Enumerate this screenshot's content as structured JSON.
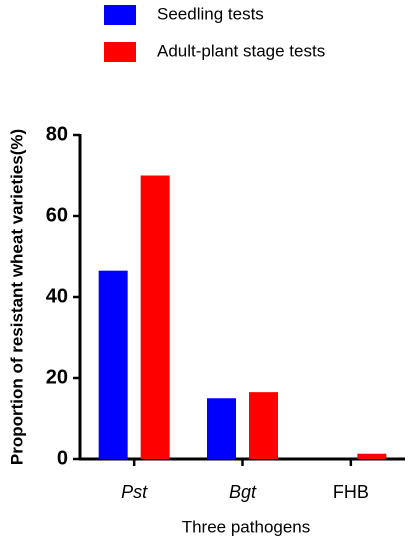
{
  "chart_data": {
    "type": "bar",
    "categories": [
      "Pst",
      "Bgt",
      "FHB"
    ],
    "category_font_style": [
      "italic",
      "italic",
      "normal"
    ],
    "series": [
      {
        "name": "Seedling tests",
        "color": "#0000ff",
        "values": [
          46.5,
          15,
          0
        ]
      },
      {
        "name": "Adult-plant stage tests",
        "color": "#ff0000",
        "values": [
          70,
          16.5,
          1.3
        ]
      }
    ],
    "x_label": "Three pathogens",
    "y_label": "Proportion of resistant wheat varieties(%)",
    "ylim": [
      0,
      80
    ],
    "yticks": [
      0,
      20,
      40,
      60,
      80
    ],
    "grid": false
  }
}
